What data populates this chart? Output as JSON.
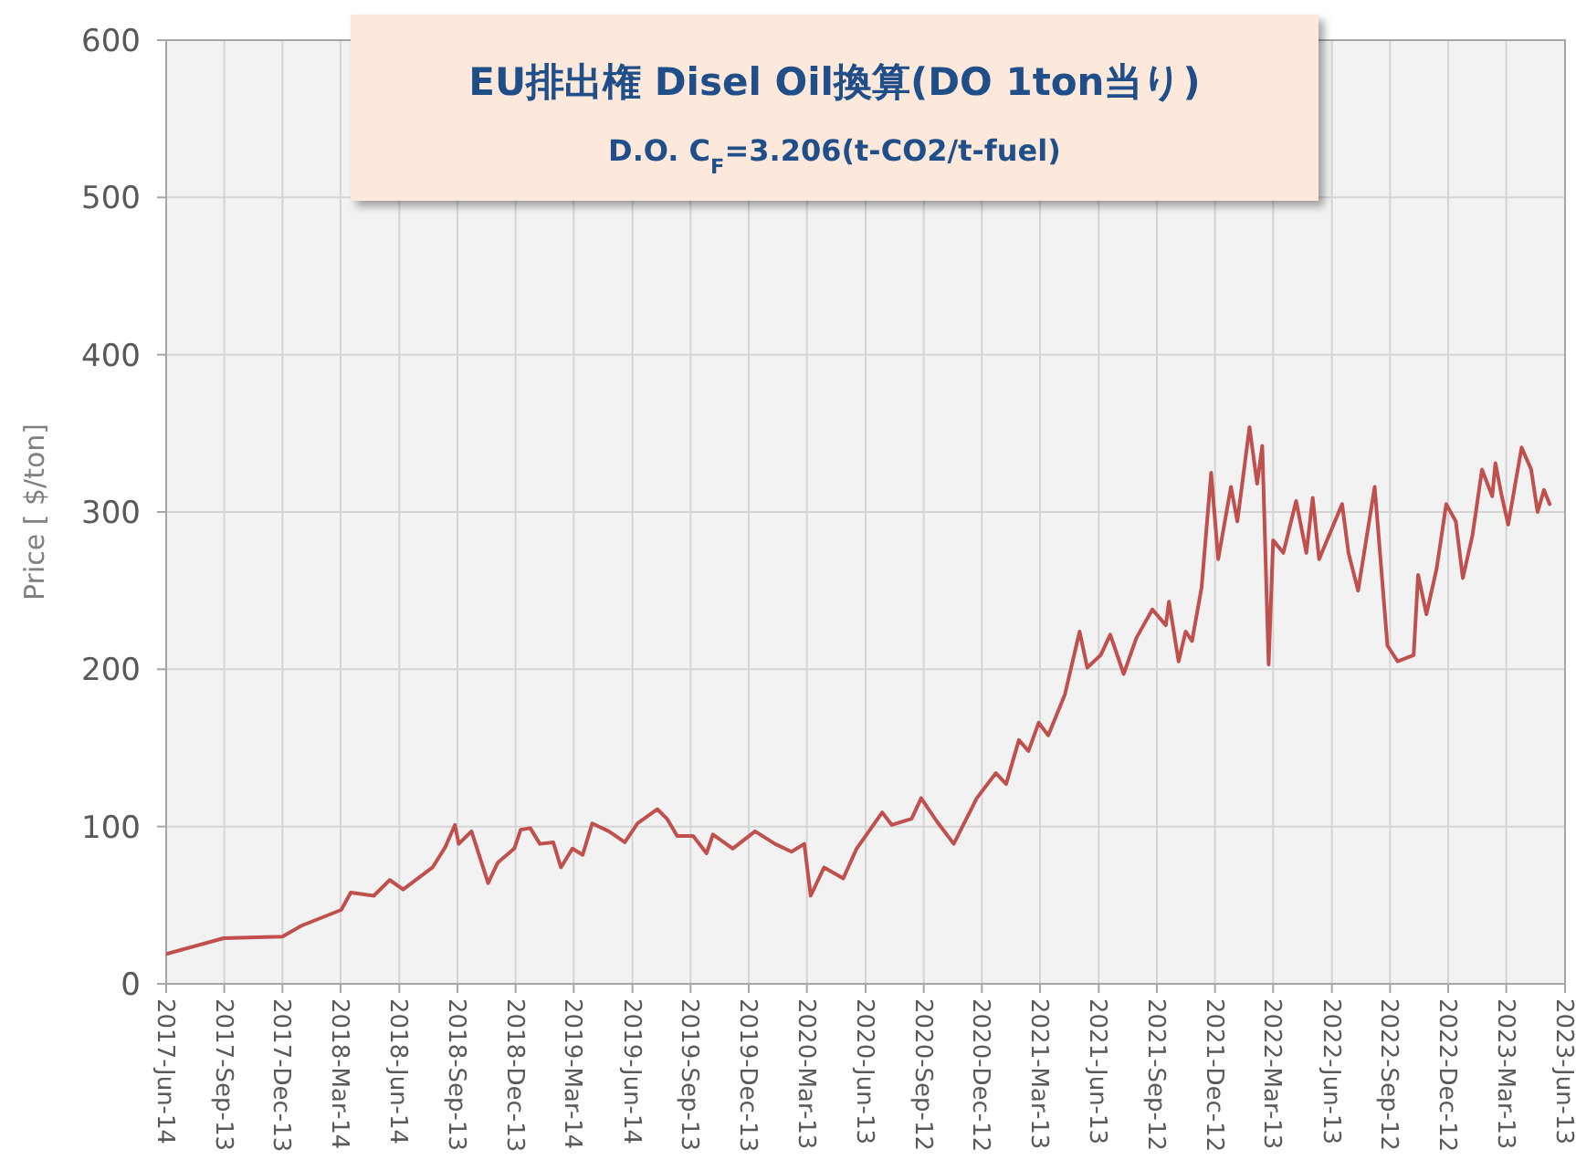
{
  "chart_data": {
    "type": "line",
    "title": "EU排出権 Disel Oil換算(DO 1ton当り)",
    "subtitle": "D.O.  C$_{F}$=3.206(t-CO2/t-fuel)",
    "ylabel": "Price [ $/ton]",
    "xlim": [
      "2017-06-14",
      "2023-06-13"
    ],
    "xticks": [
      {
        "value": "2017-06-14",
        "label": "2017-Jun-14"
      },
      {
        "value": "2017-09-13",
        "label": "2017-Sep-13"
      },
      {
        "value": "2017-12-13",
        "label": "2017-Dec-13"
      },
      {
        "value": "2018-03-14",
        "label": "2018-Mar-14"
      },
      {
        "value": "2018-06-14",
        "label": "2018-Jun-14"
      },
      {
        "value": "2018-09-13",
        "label": "2018-Sep-13"
      },
      {
        "value": "2018-12-13",
        "label": "2018-Dec-13"
      },
      {
        "value": "2019-03-14",
        "label": "2019-Mar-14"
      },
      {
        "value": "2019-06-14",
        "label": "2019-Jun-14"
      },
      {
        "value": "2019-09-13",
        "label": "2019-Sep-13"
      },
      {
        "value": "2019-12-13",
        "label": "2019-Dec-13"
      },
      {
        "value": "2020-03-13",
        "label": "2020-Mar-13"
      },
      {
        "value": "2020-06-13",
        "label": "2020-Jun-13"
      },
      {
        "value": "2020-09-12",
        "label": "2020-Sep-12"
      },
      {
        "value": "2020-12-12",
        "label": "2020-Dec-12"
      },
      {
        "value": "2021-03-13",
        "label": "2021-Mar-13"
      },
      {
        "value": "2021-06-13",
        "label": "2021-Jun-13"
      },
      {
        "value": "2021-09-12",
        "label": "2021-Sep-12"
      },
      {
        "value": "2021-12-12",
        "label": "2021-Dec-12"
      },
      {
        "value": "2022-03-13",
        "label": "2022-Mar-13"
      },
      {
        "value": "2022-06-13",
        "label": "2022-Jun-13"
      },
      {
        "value": "2022-09-12",
        "label": "2022-Sep-12"
      },
      {
        "value": "2022-12-12",
        "label": "2022-Dec-12"
      },
      {
        "value": "2023-03-13",
        "label": "2023-Mar-13"
      },
      {
        "value": "2023-06-13",
        "label": "2023-Jun-13"
      }
    ],
    "ylim": [
      0,
      600
    ],
    "yticks": [
      0,
      100,
      200,
      300,
      400,
      500,
      600
    ],
    "grid": true,
    "marker": "none",
    "line_style": "solid",
    "x": [
      "2017-06-14",
      "2017-09-12",
      "2017-12-13",
      "2018-01-12",
      "2018-03-15",
      "2018-03-30",
      "2018-05-05",
      "2018-05-30",
      "2018-06-20",
      "2018-08-05",
      "2018-08-25",
      "2018-09-09",
      "2018-09-15",
      "2018-10-05",
      "2018-10-31",
      "2018-11-15",
      "2018-12-11",
      "2018-12-21",
      "2019-01-05",
      "2019-01-20",
      "2019-02-10",
      "2019-02-22",
      "2019-03-12",
      "2019-03-28",
      "2019-04-12",
      "2019-05-08",
      "2019-06-02",
      "2019-06-22",
      "2019-07-23",
      "2019-08-07",
      "2019-08-23",
      "2019-09-17",
      "2019-10-08",
      "2019-10-18",
      "2019-11-18",
      "2019-12-23",
      "2020-01-23",
      "2020-02-18",
      "2020-03-09",
      "2020-03-19",
      "2020-04-09",
      "2020-05-09",
      "2020-05-30",
      "2020-07-09",
      "2020-07-24",
      "2020-08-24",
      "2020-09-08",
      "2020-10-03",
      "2020-10-29",
      "2020-12-04",
      "2021-01-03",
      "2021-01-19",
      "2021-02-08",
      "2021-02-23",
      "2021-03-11",
      "2021-03-26",
      "2021-04-21",
      "2021-05-14",
      "2021-05-26",
      "2021-06-16",
      "2021-07-01",
      "2021-07-22",
      "2021-08-11",
      "2021-09-05",
      "2021-09-26",
      "2021-10-01",
      "2021-10-16",
      "2021-10-27",
      "2021-11-06",
      "2021-11-21",
      "2021-12-06",
      "2021-12-17",
      "2022-01-06",
      "2022-01-16",
      "2022-02-04",
      "2022-02-16",
      "2022-02-24",
      "2022-03-06",
      "2022-03-13",
      "2022-03-29",
      "2022-04-18",
      "2022-05-04",
      "2022-05-14",
      "2022-05-24",
      "2022-06-29",
      "2022-07-09",
      "2022-07-24",
      "2022-08-19",
      "2022-09-08",
      "2022-09-24",
      "2022-10-19",
      "2022-10-26",
      "2022-11-08",
      "2022-11-24",
      "2022-12-09",
      "2022-12-24",
      "2023-01-04",
      "2023-01-19",
      "2023-02-03",
      "2023-02-19",
      "2023-02-24",
      "2023-03-06",
      "2023-03-16",
      "2023-04-06",
      "2023-04-21",
      "2023-05-01",
      "2023-05-11",
      "2023-05-20"
    ],
    "series": [
      {
        "color": "#c0504d",
        "values": [
          19,
          29,
          30,
          37,
          47,
          58,
          56,
          66,
          60,
          74,
          87,
          101,
          89,
          97,
          64,
          77,
          86,
          98,
          99,
          89,
          90,
          74,
          86,
          82,
          102,
          97,
          90,
          102,
          111,
          105,
          94,
          94,
          83,
          95,
          86,
          97,
          89,
          84,
          89,
          56,
          74,
          67,
          86,
          109,
          101,
          105,
          118,
          103,
          89,
          118,
          134,
          127,
          155,
          148,
          166,
          158,
          184,
          224,
          201,
          209,
          222,
          197,
          220,
          238,
          228,
          243,
          205,
          224,
          218,
          252,
          325,
          270,
          316,
          294,
          354,
          318,
          342,
          203,
          282,
          274,
          307,
          274,
          309,
          270,
          305,
          274,
          250,
          316,
          215,
          205,
          209,
          260,
          235,
          264,
          305,
          294,
          258,
          285,
          327,
          310,
          331,
          310,
          292,
          341,
          327,
          300,
          314,
          305
        ]
      }
    ]
  }
}
